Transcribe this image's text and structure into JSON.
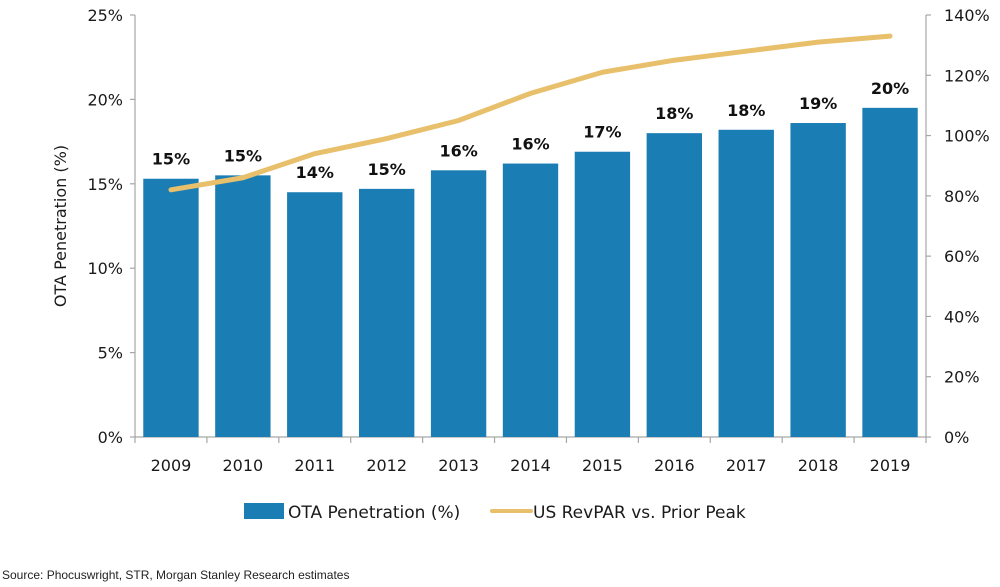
{
  "chart_data": {
    "type": "bar",
    "title": "",
    "categories": [
      "2009",
      "2010",
      "2011",
      "2012",
      "2013",
      "2014",
      "2015",
      "2016",
      "2017",
      "2018",
      "2019"
    ],
    "series": [
      {
        "name": "OTA Penetration (%)",
        "type": "bar",
        "axis": "left",
        "color": "#1A7DB4",
        "values": [
          15.3,
          15.5,
          14.5,
          14.7,
          15.8,
          16.2,
          16.9,
          18.0,
          18.2,
          18.6,
          19.5
        ],
        "data_labels": [
          "15%",
          "15%",
          "14%",
          "15%",
          "16%",
          "16%",
          "17%",
          "18%",
          "18%",
          "19%",
          "20%"
        ]
      },
      {
        "name": "US RevPAR vs. Prior Peak",
        "type": "line",
        "axis": "right",
        "color": "#E8BF6A",
        "values": [
          82,
          86,
          94,
          99,
          105,
          114,
          121,
          125,
          128,
          131,
          133
        ]
      }
    ],
    "ylabel": "OTA Penetration (%)",
    "ylabel_right": "",
    "xlabel": "",
    "ylim": [
      0,
      25
    ],
    "ylim_right": [
      0,
      140
    ],
    "yticks": [
      "0%",
      "5%",
      "10%",
      "15%",
      "20%",
      "25%"
    ],
    "yticks_values": [
      0,
      5,
      10,
      15,
      20,
      25
    ],
    "yticks_right": [
      "0%",
      "20%",
      "40%",
      "60%",
      "80%",
      "100%",
      "120%",
      "140%"
    ],
    "yticks_right_values": [
      0,
      20,
      40,
      60,
      80,
      100,
      120,
      140
    ],
    "grid": false,
    "legend_position": "bottom-center",
    "source": "Source: Phocuswright, STR, Morgan Stanley Research estimates"
  }
}
